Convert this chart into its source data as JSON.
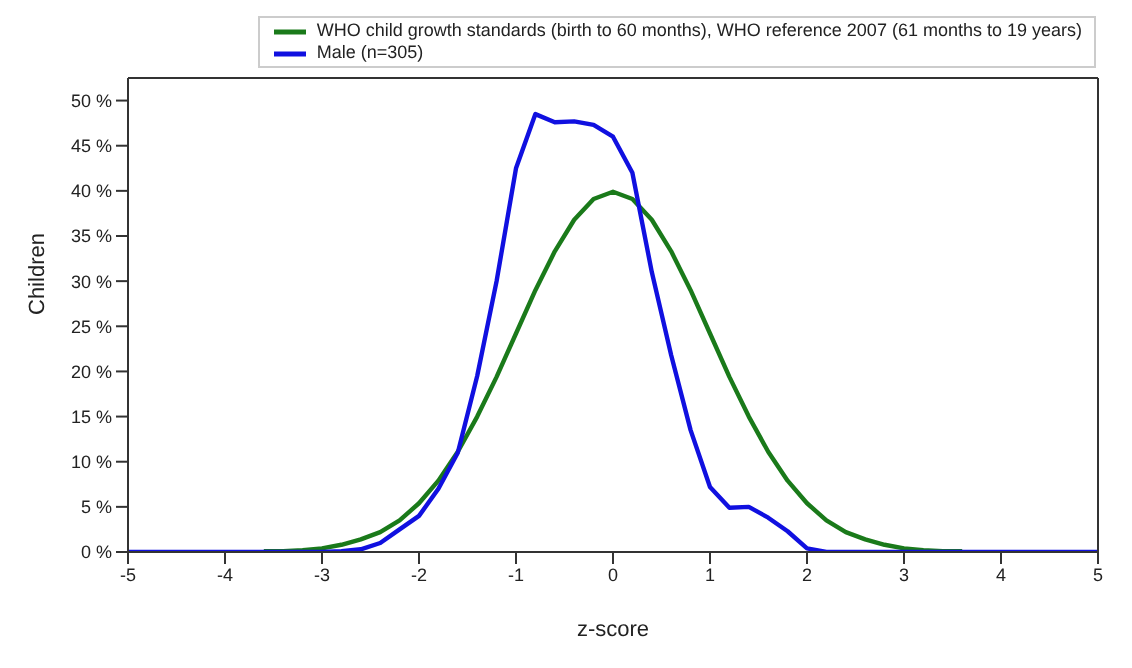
{
  "chart_data": {
    "type": "line",
    "xlabel": "z-score",
    "ylabel": "Children",
    "x": [
      -5,
      -4.8,
      -4.6,
      -4.4,
      -4.2,
      -4,
      -3.8,
      -3.6,
      -3.4,
      -3.2,
      -3,
      -2.8,
      -2.6,
      -2.4,
      -2.2,
      -2,
      -1.8,
      -1.6,
      -1.4,
      -1.2,
      -1,
      -0.8,
      -0.6,
      -0.4,
      -0.2,
      0,
      0.2,
      0.4,
      0.6,
      0.8,
      1,
      1.2,
      1.4,
      1.6,
      1.8,
      2,
      2.2,
      2.4,
      2.6,
      2.8,
      3,
      3.2,
      3.4,
      3.6,
      3.8,
      4,
      4.2,
      4.4,
      4.6,
      4.8,
      5
    ],
    "series": [
      {
        "name": "WHO child growth standards (birth to 60 months), WHO reference 2007 (61 months to 19 years)",
        "color": "#1a7a1a",
        "values": [
          null,
          null,
          null,
          null,
          null,
          null,
          null,
          0.1,
          0.1,
          0.2,
          0.4,
          0.8,
          1.4,
          2.2,
          3.5,
          5.4,
          7.9,
          11.1,
          15,
          19.4,
          24.2,
          29,
          33.3,
          36.8,
          39.1,
          39.9,
          39.1,
          36.8,
          33.3,
          29,
          24.2,
          19.4,
          15,
          11.1,
          7.9,
          5.4,
          3.5,
          2.2,
          1.4,
          0.8,
          0.4,
          0.2,
          0.1,
          0.1,
          null,
          null,
          null,
          null,
          null,
          null,
          null
        ]
      },
      {
        "name": "Male (n=305)",
        "color": "#1010e0",
        "values": [
          0,
          0,
          0,
          0,
          0,
          0,
          0,
          0,
          0,
          0,
          0,
          0.1,
          0.3,
          1,
          2.5,
          4,
          7,
          11,
          19.5,
          30,
          42.5,
          48.5,
          47.6,
          47.7,
          47.3,
          46,
          42,
          31,
          21.8,
          13.5,
          7.2,
          4.9,
          5,
          3.8,
          2.3,
          0.4,
          0,
          0,
          0,
          0,
          0,
          0,
          0,
          0,
          0,
          0,
          0,
          0,
          0,
          0,
          0
        ]
      }
    ],
    "xlim": [
      -5,
      5
    ],
    "xticks": [
      -5,
      -4,
      -3,
      -2,
      -1,
      0,
      1,
      2,
      3,
      4,
      5
    ],
    "ylim": [
      0,
      52.5
    ],
    "yticks": [
      {
        "value": 0,
        "label": "0 %"
      },
      {
        "value": 5,
        "label": "5 %"
      },
      {
        "value": 10,
        "label": "10 %"
      },
      {
        "value": 15,
        "label": "15 %"
      },
      {
        "value": 20,
        "label": "20 %"
      },
      {
        "value": 25,
        "label": "25 %"
      },
      {
        "value": 30,
        "label": "30 %"
      },
      {
        "value": 35,
        "label": "35 %"
      },
      {
        "value": 40,
        "label": "40 %"
      },
      {
        "value": 45,
        "label": "45 %"
      },
      {
        "value": 50,
        "label": "50 %"
      }
    ],
    "grid": false,
    "legend": "top right",
    "marker": "none",
    "line_style": "solid"
  }
}
